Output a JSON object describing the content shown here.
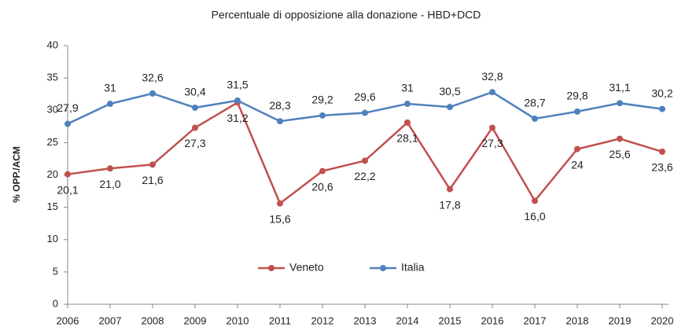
{
  "chart_data": {
    "type": "line",
    "title": "Percentuale di opposizione alla donazione - HBD+DCD",
    "y_label": "% OPP./ACM",
    "categories": [
      "2006",
      "2007",
      "2008",
      "2009",
      "2010",
      "2011",
      "2012",
      "2013",
      "2014",
      "2015",
      "2016",
      "2017",
      "2018",
      "2019",
      "2020"
    ],
    "series": [
      {
        "name": "Veneto",
        "color": "#c0504d",
        "values": [
          20.1,
          21.0,
          21.6,
          27.3,
          31.2,
          15.6,
          20.6,
          22.2,
          28.1,
          17.8,
          27.3,
          16.0,
          24,
          25.6,
          23.6
        ],
        "value_labels": [
          "20,1",
          "21,0",
          "21,6",
          "27,3",
          "31,2",
          "15,6",
          "20,6",
          "22,2",
          "28,1",
          "17,8",
          "27,3",
          "16,0",
          "24",
          "25,6",
          "23,6"
        ]
      },
      {
        "name": "Italia",
        "color": "#4f81bd",
        "values": [
          27.9,
          31,
          32.6,
          30.4,
          31.5,
          28.3,
          29.2,
          29.6,
          31,
          30.5,
          32.8,
          28.7,
          29.8,
          31.1,
          30.2
        ],
        "value_labels": [
          "27,9",
          "31",
          "32,6",
          "30,4",
          "31,5",
          "28,3",
          "29,2",
          "29,6",
          "31",
          "30,5",
          "32,8",
          "28,7",
          "29,8",
          "31,1",
          "30,2"
        ]
      }
    ],
    "ylim": [
      0,
      40
    ],
    "yticks": [
      0,
      5,
      10,
      15,
      20,
      25,
      30,
      35,
      40
    ],
    "grid": false,
    "legend": "bottom"
  }
}
